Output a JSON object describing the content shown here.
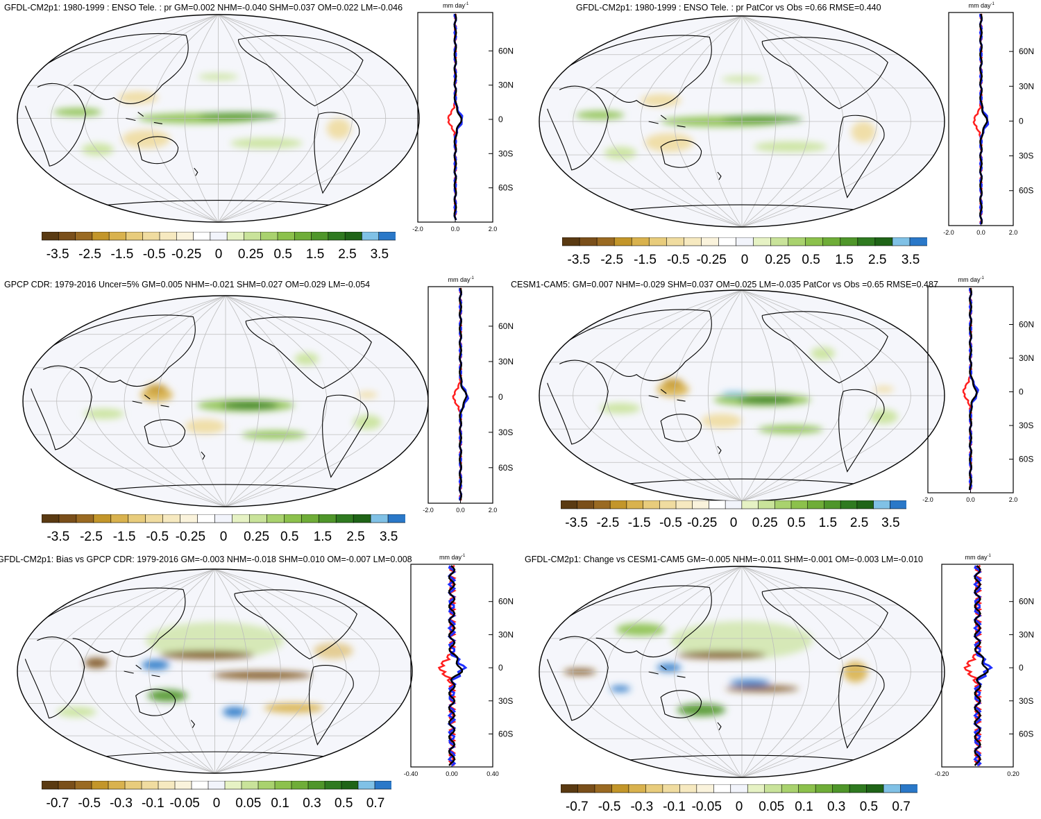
{
  "panels": [
    {
      "title": "GFDL-CM2p1: 1980-1999 : ENSO Tele. : pr GM=0.002 NHM=-0.040 SHM=0.037 OM=0.022 LM=-0.046",
      "unit": "mm day",
      "unit_exp": "-1",
      "lat_labels": [
        "60N",
        "30N",
        "0",
        "30S",
        "60S"
      ],
      "profile_xticks": [
        "-2.0",
        "0.0",
        "2.0"
      ],
      "colorbar_labels": [
        "-3.5",
        "-2.5",
        "-1.5",
        "-0.5",
        "-0.25",
        "0",
        "0.25",
        "0.5",
        "1.5",
        "2.5",
        "3.5"
      ],
      "colorbar": "main",
      "style": "model"
    },
    {
      "title": "GFDL-CM2p1: 1980-1999 : ENSO Tele. : pr PatCor vs Obs =0.66 RMSE=0.440",
      "unit": "mm day",
      "unit_exp": "-1",
      "lat_labels": [
        "60N",
        "30N",
        "0",
        "30S",
        "60S"
      ],
      "profile_xticks": [
        "-2.0",
        "0.0",
        "2.0"
      ],
      "colorbar_labels": [
        "-3.5",
        "-2.5",
        "-1.5",
        "-0.5",
        "-0.25",
        "0",
        "0.25",
        "0.5",
        "1.5",
        "2.5",
        "3.5"
      ],
      "colorbar": "main",
      "style": "model"
    },
    {
      "title": "GPCP CDR: 1979-2016 Uncer=5% GM=0.005 NHM=-0.021 SHM=0.027 OM=0.029 LM=-0.054",
      "unit": "mm day",
      "unit_exp": "-1",
      "lat_labels": [
        "60N",
        "30N",
        "0",
        "30S",
        "60S"
      ],
      "profile_xticks": [
        "-2.0",
        "0.0",
        "2.0"
      ],
      "colorbar_labels": [
        "-3.5",
        "-2.5",
        "-1.5",
        "-0.5",
        "-0.25",
        "0",
        "0.25",
        "0.5",
        "1.5",
        "2.5",
        "3.5"
      ],
      "colorbar": "main",
      "style": "obs"
    },
    {
      "title": "CESM1-CAM5: GM=0.007 NHM=-0.029 SHM=0.037 OM=0.025 LM=-0.035 PatCor vs Obs =0.65 RMSE=0.487",
      "unit": "mm day",
      "unit_exp": "-1",
      "lat_labels": [
        "60N",
        "30N",
        "0",
        "30S",
        "60S"
      ],
      "profile_xticks": [
        "-2.0",
        "0.0",
        "2.0"
      ],
      "colorbar_labels": [
        "-3.5",
        "-2.5",
        "-1.5",
        "-0.5",
        "-0.25",
        "0",
        "0.25",
        "0.5",
        "1.5",
        "2.5",
        "3.5"
      ],
      "colorbar": "main",
      "style": "cesm"
    },
    {
      "title": "GFDL-CM2p1: Bias vs GPCP CDR: 1979-2016 GM=-0.003 NHM=-0.018 SHM=0.010 OM=-0.007 LM=0.008",
      "unit": "mm day",
      "unit_exp": "-1",
      "lat_labels": [
        "60N",
        "30N",
        "0",
        "30S",
        "60S"
      ],
      "profile_xticks": [
        "-0.40",
        "0.00",
        "0.40"
      ],
      "colorbar_labels": [
        "-0.7",
        "-0.5",
        "-0.3",
        "-0.1",
        "-0.05",
        "0",
        "0.05",
        "0.1",
        "0.3",
        "0.5",
        "0.7"
      ],
      "colorbar": "diff",
      "style": "bias"
    },
    {
      "title": "GFDL-CM2p1: Change vs CESM1-CAM5 GM=-0.005 NHM=-0.011 SHM=-0.001 OM=-0.003 LM=-0.010",
      "unit": "mm day",
      "unit_exp": "-1",
      "lat_labels": [
        "60N",
        "30N",
        "0",
        "30S",
        "60S"
      ],
      "profile_xticks": [
        "-0.20",
        "0.20"
      ],
      "colorbar_labels": [
        "-0.7",
        "-0.5",
        "-0.3",
        "-0.1",
        "-0.05",
        "0",
        "0.05",
        "0.1",
        "0.3",
        "0.5",
        "0.7"
      ],
      "colorbar": "diff",
      "style": "change"
    }
  ],
  "colors": {
    "colorbar_main": [
      "#5a3a12",
      "#7a4f1a",
      "#9a6a22",
      "#c3962a",
      "#d9b24e",
      "#e8cc7c",
      "#f0dca0",
      "#f6e9c0",
      "#faf3dc",
      "#ffffff",
      "#f2f4fb",
      "#e6f2c4",
      "#c9e39a",
      "#a9d26e",
      "#8cc14c",
      "#6fad38",
      "#4f962a",
      "#2f7a20",
      "#1f6417",
      "#80c1e6",
      "#2a78c8"
    ],
    "colorbar_diff": [
      "#5a3a12",
      "#7a4f1a",
      "#9a6a22",
      "#c3962a",
      "#d9b24e",
      "#e8cc7c",
      "#f0dca0",
      "#f6e9c0",
      "#faf3dc",
      "#ffffff",
      "#f2f4fb",
      "#e6f2c4",
      "#c9e39a",
      "#a9d26e",
      "#8cc14c",
      "#6fad38",
      "#4f962a",
      "#2f7a20",
      "#1f6417",
      "#80c1e6",
      "#2a78c8"
    ],
    "profile_red": "#ff1f1f",
    "profile_blue": "#1f2fff",
    "profile_black": "#000000",
    "ocean_fill": "#f5f6fb"
  }
}
